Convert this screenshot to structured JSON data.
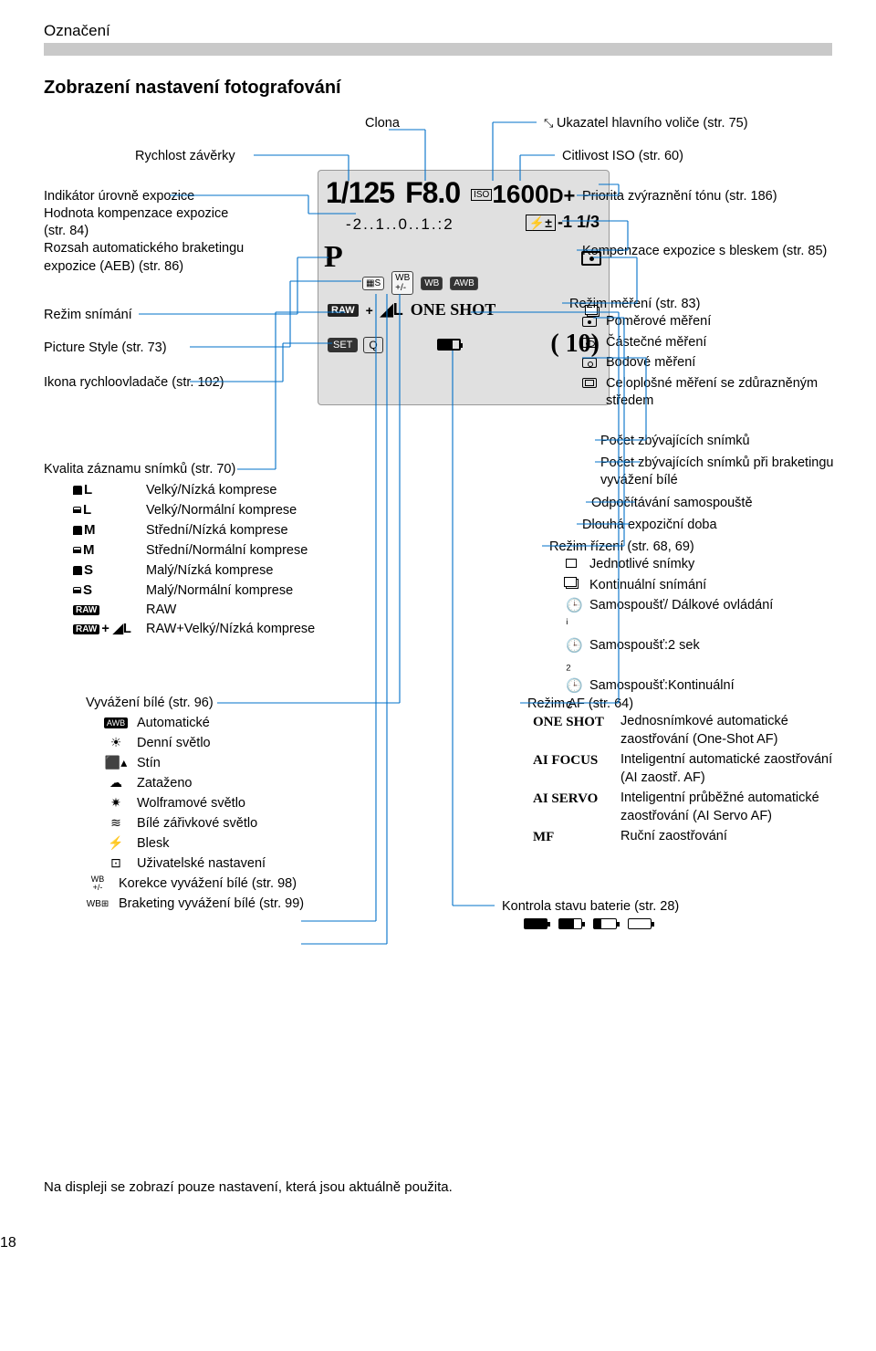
{
  "section_label": "Označení",
  "main_title": "Zobrazení nastavení fotografování",
  "page_number": "18",
  "bottom_note": "Na displeji se zobrazí pouze nastavení, která jsou aktuálně použita.",
  "lcd": {
    "shutter": "1/125",
    "aperture": "F8.0",
    "iso_label": "ISO",
    "iso": "1600",
    "d_plus": "D+",
    "scale": "-2..1..0..1.:2",
    "flash_comp": "-1 1/3",
    "mode": "P",
    "raw": "RAW",
    "qual_plus": "+",
    "qual": "◢L",
    "oneshot": "ONE SHOT",
    "set": "SET",
    "q": "Q",
    "count": "(   10)"
  },
  "top_labels": {
    "clona": "Clona",
    "rychlost": "Rychlost závěrky",
    "ukazatel": "Ukazatel hlavního voliče (str. 75)",
    "citlivost": "Citlivost ISO (str. 60)"
  },
  "left_labels": {
    "indikator": "Indikátor úrovně expozice",
    "hodnota": "Hodnota kompenzace expozice (str. 84)",
    "rozsah": "Rozsah automatického braketingu expozice (AEB) (str. 86)",
    "rezim_snimani": "Režim snímání",
    "picture_style": "Picture Style (str. 73)",
    "ikona_rychlo": "Ikona rychloovladače (str. 102)"
  },
  "quality": {
    "title": "Kvalita záznamu snímků (str. 70)",
    "items": [
      {
        "sym": "◢L",
        "txt": "Velký/Nízká komprese",
        "style": "full"
      },
      {
        "sym": "◢L",
        "txt": "Velký/Normální komprese",
        "style": "half"
      },
      {
        "sym": "◢M",
        "txt": "Střední/Nízká komprese",
        "style": "full"
      },
      {
        "sym": "◢M",
        "txt": "Střední/Normální komprese",
        "style": "half"
      },
      {
        "sym": "◢S",
        "txt": "Malý/Nízká komprese",
        "style": "full"
      },
      {
        "sym": "◢S",
        "txt": "Malý/Normální komprese",
        "style": "half"
      },
      {
        "sym": "RAW",
        "txt": "RAW",
        "style": "raw"
      },
      {
        "sym": "RAW+◢L",
        "txt": "RAW+Velký/Nízká komprese",
        "style": "rawplus"
      }
    ]
  },
  "wb": {
    "title": "Vyvážení bílé (str. 96)",
    "items": [
      {
        "sym": "AWB",
        "txt": "Automatické",
        "cls": "awb"
      },
      {
        "sym": "☀",
        "txt": "Denní světlo"
      },
      {
        "sym": "⬛▴",
        "txt": "Stín"
      },
      {
        "sym": "☁",
        "txt": "Zataženo"
      },
      {
        "sym": "✷",
        "txt": "Wolframové světlo"
      },
      {
        "sym": "≋",
        "txt": "Bílé zářivkové světlo"
      },
      {
        "sym": "⚡",
        "txt": "Blesk"
      },
      {
        "sym": "⊡",
        "txt": "Uživatelské nastavení"
      }
    ],
    "korekce_sym": "WB +/-",
    "korekce": "Korekce vyvážení bílé (str. 98)",
    "braketing_sym": "WB⊞",
    "braketing": "Braketing vyvážení bílé (str. 99)"
  },
  "right": {
    "priorita": "Priorita zvýraznění tónu (str. 186)",
    "kompenzace_blesk": "Kompenzace expozice s bleskem (str. 85)",
    "rezim_mereni": "Režim měření (str. 83)",
    "mereni_items": [
      {
        "txt": "Poměrové měření",
        "ic": "dot"
      },
      {
        "txt": "Částečné měření",
        "ic": "partial"
      },
      {
        "txt": "Bodové měření",
        "ic": "spot"
      },
      {
        "txt": "Celoplošné měření se zdůrazněným středem",
        "ic": "cw"
      }
    ],
    "pocet_zbyv": "Počet zbývajících snímků",
    "pocet_zbyv_brak": "Počet zbývajících snímků při braketingu vyvážení bílé",
    "odpocitavani": "Odpočítávání samospouště",
    "dlouha": "Dlouhá expoziční doba",
    "rezim_rizeni": "Režim řízení (str. 68,  69)",
    "rizeni_items": [
      {
        "sym": "single",
        "txt": "Jednotlivé snímky"
      },
      {
        "sym": "cont",
        "txt": "Kontinuální snímání"
      },
      {
        "sym": "timer",
        "txt": "Samospoušť/ Dálkové ovládání"
      },
      {
        "sym": "timer2",
        "txt": "Samospoušť:2 sek"
      },
      {
        "sym": "timerc",
        "txt": "Samospoušť:Kontinuální"
      }
    ],
    "rezim_af": "Režim AF (str. 64)",
    "af_items": [
      {
        "sym": "ONE SHOT",
        "txt": "Jednosnímkové automatické zaostřování (One-Shot AF)"
      },
      {
        "sym": "AI FOCUS",
        "txt": "Inteligentní automatické zaostřování (AI zaostř. AF)"
      },
      {
        "sym": "AI SERVO",
        "txt": "Inteligentní průběžné automatické zaostřování (AI Servo AF)"
      },
      {
        "sym": "MF",
        "txt": "Ruční zaostřování"
      }
    ],
    "kontrola_baterie": "Kontrola stavu baterie (str. 28)",
    "batt_levels": [
      100,
      66,
      33,
      0
    ]
  },
  "icon_arrow": "⤡"
}
